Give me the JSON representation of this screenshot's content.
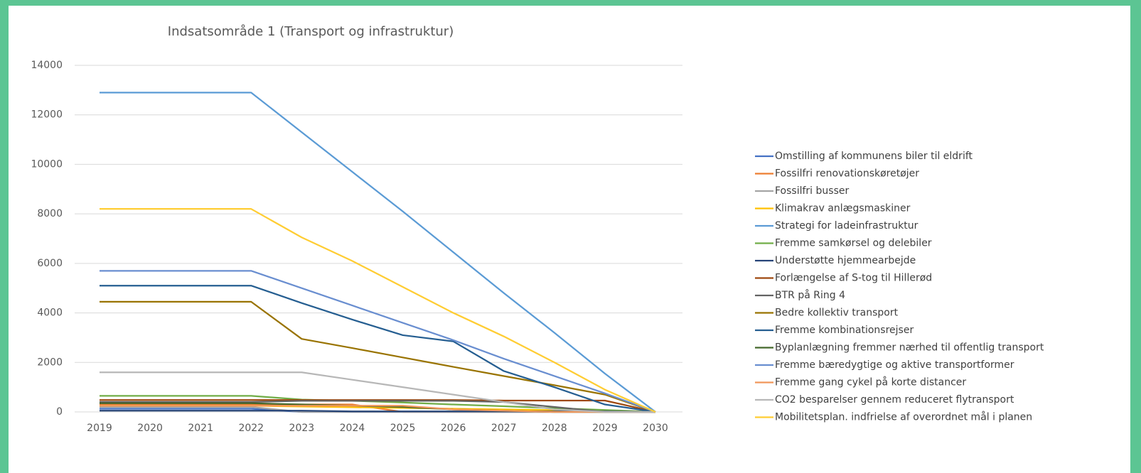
{
  "chart_data": {
    "type": "line",
    "title": "Indsatsområde 1 (Transport og infrastruktur)",
    "categories": [
      "2019",
      "2020",
      "2021",
      "2022",
      "2023",
      "2024",
      "2025",
      "2026",
      "2027",
      "2028",
      "2029",
      "2030"
    ],
    "ylim": [
      0,
      14000
    ],
    "yticks": [
      0,
      2000,
      4000,
      6000,
      8000,
      10000,
      12000,
      14000
    ],
    "grid": true,
    "legend": "right",
    "series": [
      {
        "name": "Omstilling af kommunens biler til eldrift",
        "color": "#4472c4",
        "values": [
          130,
          130,
          130,
          130,
          0,
          0,
          0,
          0,
          0,
          0,
          0,
          0
        ]
      },
      {
        "name": "Fossilfri renovationskøretøjer",
        "color": "#ed7d31",
        "values": [
          300,
          300,
          300,
          300,
          300,
          300,
          0,
          0,
          0,
          0,
          0,
          0
        ]
      },
      {
        "name": "Fossilfri busser",
        "color": "#a5a5a5",
        "values": [
          200,
          200,
          200,
          200,
          0,
          0,
          0,
          0,
          0,
          0,
          0,
          0
        ]
      },
      {
        "name": "Klimakrav anlægsmaskiner",
        "color": "#ffc000",
        "values": [
          250,
          250,
          250,
          250,
          220,
          190,
          160,
          130,
          100,
          70,
          30,
          0
        ]
      },
      {
        "name": "Strategi for ladeinfrastruktur",
        "color": "#5b9bd5",
        "values": [
          12900,
          12900,
          12900,
          12900,
          11300,
          9700,
          8100,
          6450,
          4800,
          3200,
          1550,
          0
        ]
      },
      {
        "name": "Fremme samkørsel og delebiler",
        "color": "#70ad47",
        "values": [
          650,
          650,
          650,
          650,
          500,
          450,
          380,
          300,
          230,
          150,
          80,
          0
        ]
      },
      {
        "name": "Understøtte hjemmearbejde",
        "color": "#264478",
        "values": [
          50,
          50,
          50,
          50,
          50,
          20,
          20,
          20,
          20,
          20,
          20,
          0
        ]
      },
      {
        "name": "Forlængelse af S-tog til Hillerød",
        "color": "#9e480e",
        "values": [
          480,
          480,
          480,
          480,
          480,
          480,
          480,
          480,
          460,
          460,
          460,
          0
        ]
      },
      {
        "name": "BTR på Ring 4",
        "color": "#636363",
        "values": [
          400,
          400,
          400,
          400,
          450,
          450,
          450,
          450,
          400,
          200,
          0,
          0
        ]
      },
      {
        "name": "Bedre kollektiv transport",
        "color": "#997300",
        "values": [
          4450,
          4450,
          4450,
          4450,
          2950,
          2580,
          2200,
          1820,
          1450,
          1080,
          700,
          0
        ]
      },
      {
        "name": "Fremme kombinationsrejser",
        "color": "#255e91",
        "values": [
          5100,
          5100,
          5100,
          5100,
          4400,
          3730,
          3100,
          2850,
          1650,
          1000,
          300,
          0
        ]
      },
      {
        "name": "Byplanlægning fremmer nærhed til offentlig transport",
        "color": "#43682b",
        "values": [
          350,
          350,
          350,
          350,
          300,
          250,
          200,
          100,
          50,
          0,
          0,
          0
        ]
      },
      {
        "name": "Fremme bæredygtige og aktive transportformer",
        "color": "#698ed0",
        "values": [
          5700,
          5700,
          5700,
          5700,
          5000,
          4300,
          3600,
          2900,
          2150,
          1450,
          750,
          0
        ]
      },
      {
        "name": "Fremme gang cykel på korte distancer",
        "color": "#f1975a",
        "values": [
          250,
          250,
          250,
          250,
          250,
          250,
          250,
          100,
          50,
          0,
          0,
          0
        ]
      },
      {
        "name": "CO2 besparelser gennem reduceret flytransport",
        "color": "#b7b7b7",
        "values": [
          1600,
          1600,
          1600,
          1600,
          1600,
          1300,
          1000,
          700,
          400,
          100,
          0,
          0
        ]
      },
      {
        "name": "Mobilitetsplan. indfrielse af overordnet mål i planen",
        "color": "#ffcd33",
        "values": [
          8200,
          8200,
          8200,
          8200,
          7050,
          6100,
          5050,
          4000,
          3050,
          2000,
          900,
          0
        ]
      }
    ]
  }
}
